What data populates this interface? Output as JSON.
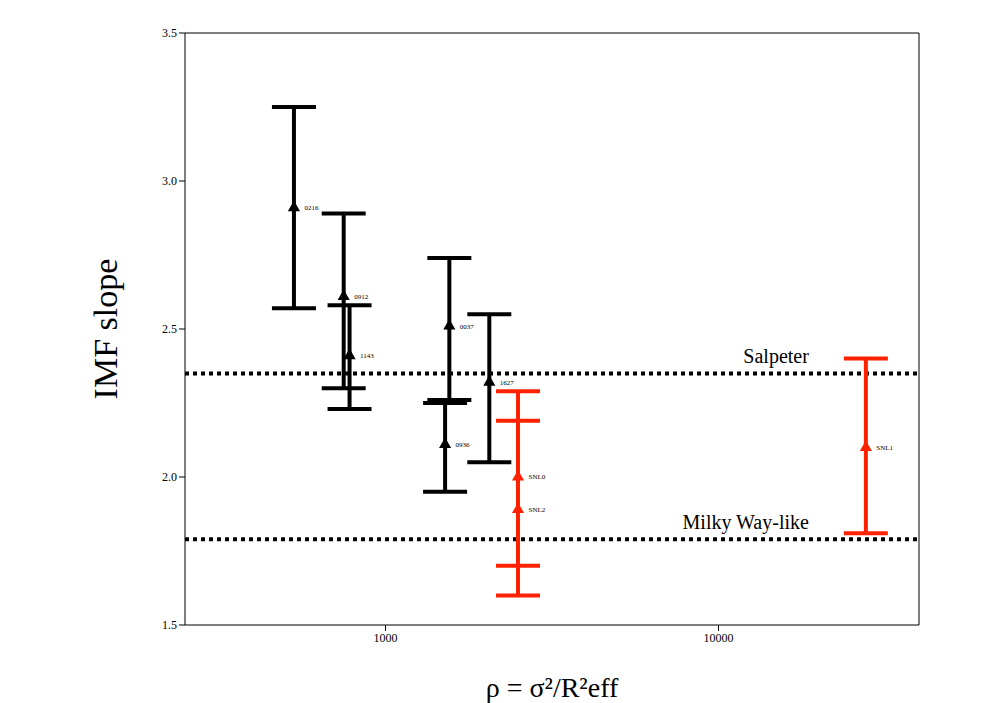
{
  "chart_data": {
    "type": "scatter",
    "x_label": "ρ = σ²/R²eff",
    "y_label": "IMF slope",
    "log": "x",
    "grid": false,
    "xlim": [
      250,
      40000
    ],
    "xticks": [
      1000,
      10000
    ],
    "ylim": [
      1.5,
      3.5
    ],
    "yticks": [
      1.5,
      {
        "value": 2.0,
        "label": "2.0"
      },
      2.5,
      {
        "value": 3.0,
        "label": "3.0"
      },
      3.5
    ],
    "marker": "triangle",
    "series": [
      {
        "color": "#000000",
        "x": [
          531,
          749,
          780,
          1555,
          1510,
          2050
        ],
        "values": [
          2.91,
          2.61,
          2.41,
          2.51,
          2.11,
          2.32
        ],
        "errors": [
          [
            0.34,
            0.34
          ],
          [
            0.31,
            0.28
          ],
          [
            0.18,
            0.17
          ],
          [
            0.25,
            0.23
          ],
          [
            0.16,
            0.14
          ],
          [
            0.27,
            0.23
          ]
        ],
        "labels": [
          "0216",
          "0912",
          "1143",
          "0037",
          "0936",
          "1627"
        ]
      },
      {
        "color": "#ff2200",
        "x": [
          2500,
          2500,
          27700
        ],
        "values": [
          2.0,
          1.89,
          2.1
        ],
        "errors": [
          [
            0.3,
            0.29
          ],
          [
            0.29,
            0.3
          ],
          [
            0.29,
            0.3
          ]
        ],
        "labels": [
          "SNL0",
          "SNL2",
          "SNL1"
        ]
      }
    ],
    "reference_lines": [
      {
        "value": 2.35,
        "label": "Salpeter",
        "line_style": "dotted"
      },
      {
        "value": 1.79,
        "label": "Milky Way-like",
        "line_style": "dotted"
      }
    ]
  }
}
